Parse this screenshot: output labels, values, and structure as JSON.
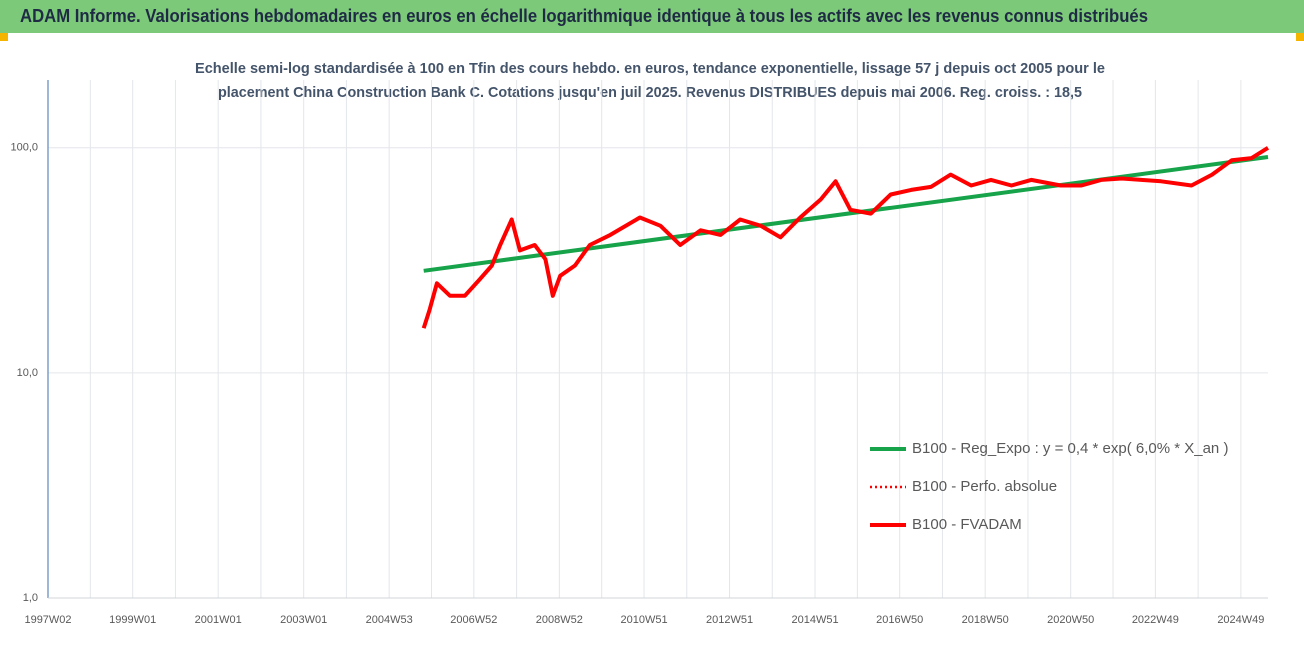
{
  "chart_data": {
    "type": "line",
    "title": "ADAM Informe. Valorisations hebdomadaires en euros en échelle logarithmique identique à tous les actifs avec les revenus connus distribués",
    "subtitle": [
      "Echelle semi-log standardisée à 100 en Tfin des cours hebdo. en euros, tendance exponentielle, lissage 57 j depuis oct 2005 pour le",
      "placement China Construction Bank C. Cotations jusqu'en juil 2025. Revenus DISTRIBUES depuis mai 2006. Reg. croiss. : 18,5"
    ],
    "log_scale": true,
    "grid": true,
    "xlim": [
      "1997W02",
      "2025W30"
    ],
    "xticks": [
      "1997W02",
      "1999W01",
      "2001W01",
      "2003W01",
      "2004W53",
      "2006W52",
      "2008W52",
      "2010W51",
      "2012W51",
      "2014W51",
      "2016W50",
      "2018W50",
      "2020W50",
      "2022W49",
      "2024W49"
    ],
    "ylim": [
      1,
      200
    ],
    "yticks": [
      {
        "value": 1,
        "label": "1,0"
      },
      {
        "value": 10,
        "label": "10,0"
      },
      {
        "value": 100,
        "label": "100,0"
      }
    ],
    "legend": "lower right",
    "series": [
      {
        "name": "B100 - Reg_Expo : y = 0,4 * exp( 6,0% *  X_an )",
        "color": "#16a34a",
        "style": "solid",
        "x": [
          "2005W43",
          "2025W30"
        ],
        "values": [
          28.4,
          91
        ]
      },
      {
        "name": "B100 - Perfo. absolue",
        "color": "#ff0000",
        "style": "dotted",
        "x": [],
        "values": []
      },
      {
        "name": "B100 - FVADAM",
        "color": "#ff0000",
        "style": "solid",
        "x": [
          "2005W43",
          "2005W50",
          "2006W07",
          "2006W23",
          "2006W41",
          "2007W07",
          "2007W22",
          "2007W32",
          "2007W46",
          "2008W04",
          "2008W22",
          "2008W35",
          "2008W44",
          "2009W01",
          "2009W19",
          "2009W37",
          "2010W10",
          "2010W46",
          "2011W19",
          "2011W43",
          "2012W16",
          "2012W40",
          "2013W12",
          "2013W37",
          "2014W09",
          "2014W33",
          "2015W06",
          "2015W24",
          "2015W42",
          "2016W15",
          "2016W39",
          "2017W12",
          "2017W36",
          "2018W08",
          "2018W33",
          "2019W05",
          "2019W30",
          "2020W02",
          "2020W38",
          "2021W11",
          "2021W35",
          "2022W08",
          "2022W32",
          "2023W04",
          "2023W41",
          "2024W14",
          "2024W38",
          "2025W10",
          "2025W30"
        ],
        "values": [
          15.8,
          19,
          25,
          22,
          22,
          26,
          30,
          37,
          48,
          35,
          37,
          32,
          22,
          27,
          30,
          37,
          41,
          49,
          45,
          37,
          43,
          41,
          48,
          45,
          40,
          49,
          59,
          71,
          53,
          51,
          62,
          65,
          67,
          76,
          68,
          72,
          68,
          72,
          68,
          68,
          72,
          73,
          72,
          71,
          68,
          76,
          88,
          90,
          100
        ]
      }
    ]
  }
}
